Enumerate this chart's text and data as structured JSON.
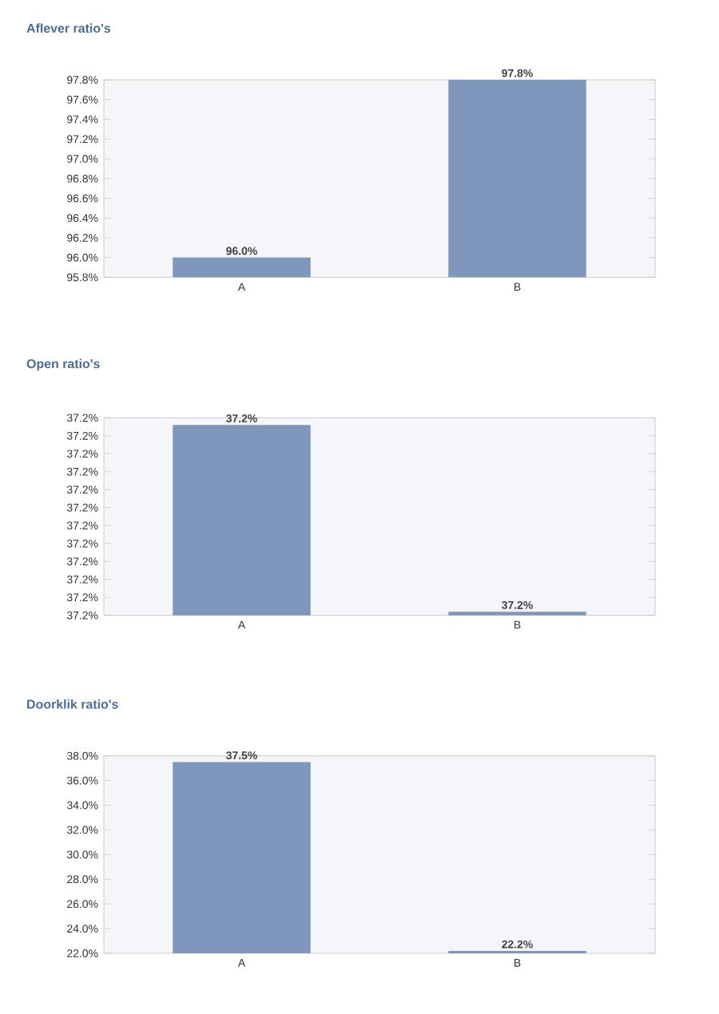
{
  "chart_data": [
    {
      "type": "bar",
      "title": "Aflever ratio's",
      "categories": [
        "A",
        "B"
      ],
      "values": [
        96.0,
        97.8
      ],
      "color": "#7f96bd",
      "value_labels": [
        "96.0%",
        "97.8%"
      ],
      "ylim": [
        95.8,
        97.8
      ],
      "yticks": [
        {
          "value": 95.8,
          "label": "95.8%"
        },
        {
          "value": 96.0,
          "label": "96.0%"
        },
        {
          "value": 96.2,
          "label": "96.2%"
        },
        {
          "value": 96.4,
          "label": "96.4%"
        },
        {
          "value": 96.6,
          "label": "96.6%"
        },
        {
          "value": 96.8,
          "label": "96.8%"
        },
        {
          "value": 97.0,
          "label": "97.0%"
        },
        {
          "value": 97.2,
          "label": "97.2%"
        },
        {
          "value": 97.4,
          "label": "97.4%"
        },
        {
          "value": 97.6,
          "label": "97.6%"
        },
        {
          "value": 97.8,
          "label": "97.8%"
        }
      ]
    },
    {
      "type": "bar",
      "title": "Open ratio's",
      "categories": [
        "A",
        "B"
      ],
      "values": [
        37.223,
        37.171
      ],
      "color": "#7f96bd",
      "value_labels": [
        "37.2%",
        "37.2%"
      ],
      "ylim": [
        37.17,
        37.225
      ],
      "yticks": [
        {
          "value": 37.17,
          "label": "37.2%"
        },
        {
          "value": 37.175,
          "label": "37.2%"
        },
        {
          "value": 37.18,
          "label": "37.2%"
        },
        {
          "value": 37.185,
          "label": "37.2%"
        },
        {
          "value": 37.19,
          "label": "37.2%"
        },
        {
          "value": 37.195,
          "label": "37.2%"
        },
        {
          "value": 37.2,
          "label": "37.2%"
        },
        {
          "value": 37.205,
          "label": "37.2%"
        },
        {
          "value": 37.21,
          "label": "37.2%"
        },
        {
          "value": 37.215,
          "label": "37.2%"
        },
        {
          "value": 37.22,
          "label": "37.2%"
        },
        {
          "value": 37.225,
          "label": "37.2%"
        }
      ]
    },
    {
      "type": "bar",
      "title": "Doorklik ratio's",
      "categories": [
        "A",
        "B"
      ],
      "values": [
        37.5,
        22.2
      ],
      "color": "#7f96bd",
      "value_labels": [
        "37.5%",
        "22.2%"
      ],
      "ylim": [
        22.0,
        38.0
      ],
      "yticks": [
        {
          "value": 22.0,
          "label": "22.0%"
        },
        {
          "value": 24.0,
          "label": "24.0%"
        },
        {
          "value": 26.0,
          "label": "26.0%"
        },
        {
          "value": 28.0,
          "label": "28.0%"
        },
        {
          "value": 30.0,
          "label": "30.0%"
        },
        {
          "value": 32.0,
          "label": "32.0%"
        },
        {
          "value": 34.0,
          "label": "34.0%"
        },
        {
          "value": 36.0,
          "label": "36.0%"
        },
        {
          "value": 38.0,
          "label": "38.0%"
        }
      ]
    }
  ]
}
